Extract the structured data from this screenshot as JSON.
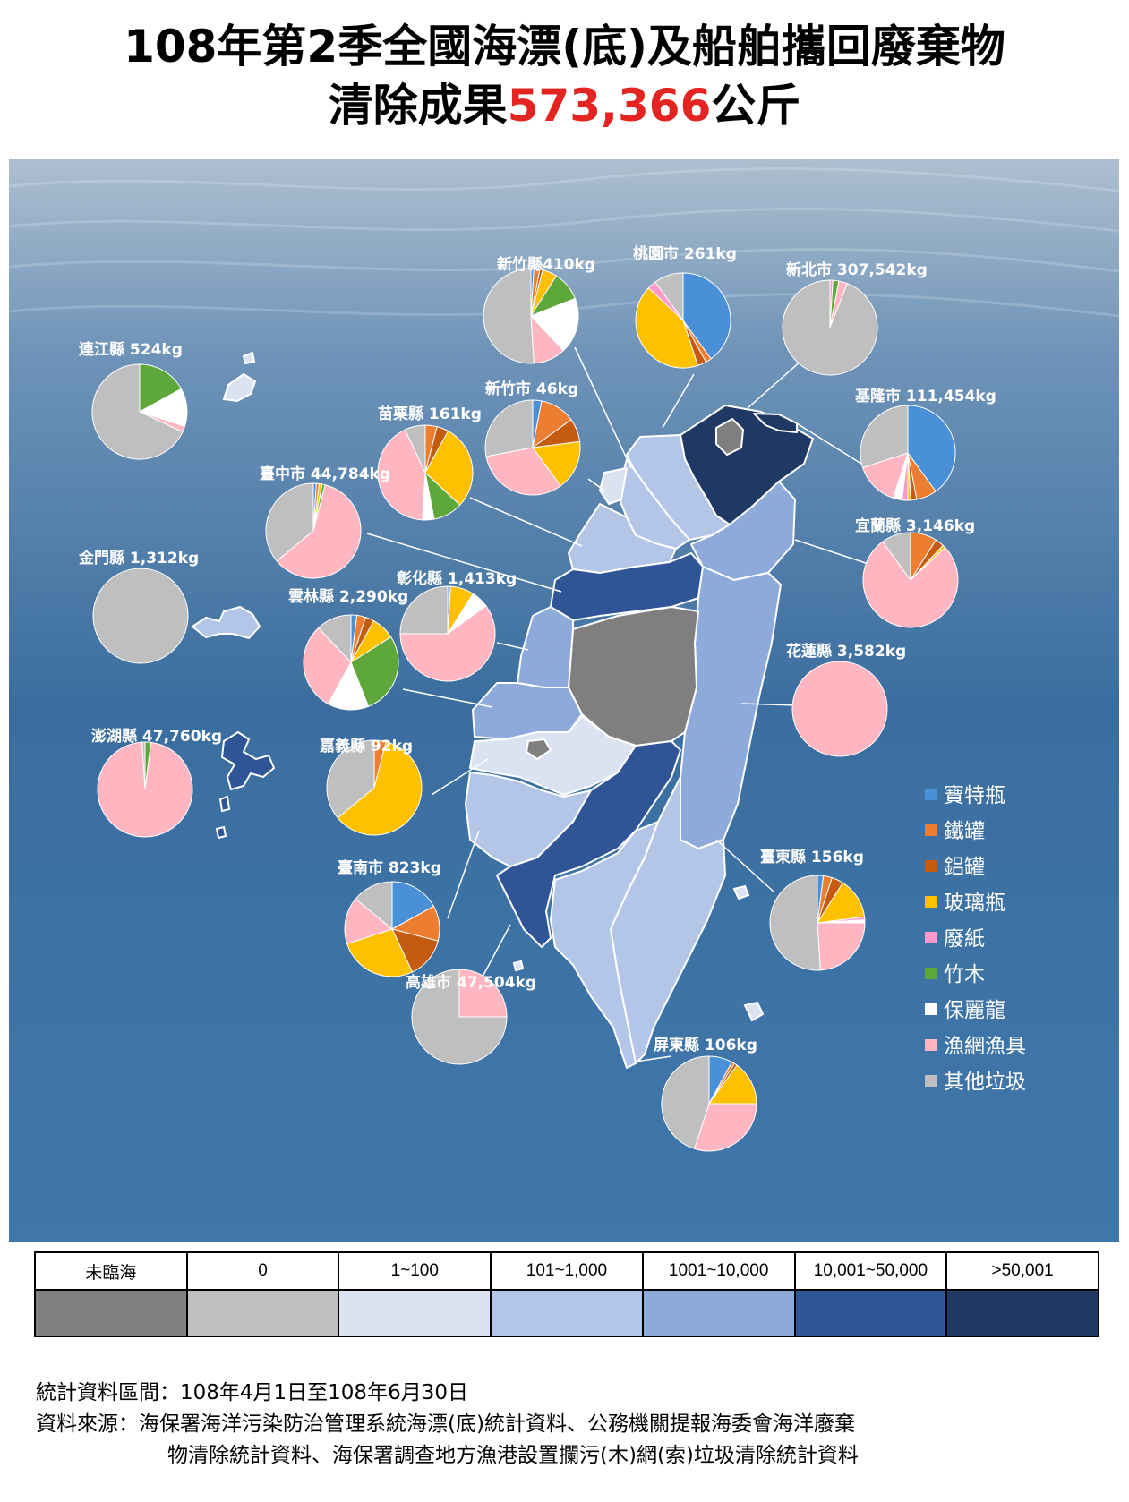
{
  "title": {
    "line1": "108年第2季全國海漂(底)及船舶攜回廢棄物",
    "line2_prefix": "清除成果",
    "line2_value": "573,366",
    "line2_unit": "公斤"
  },
  "colors": {
    "寶特瓶": "#4a90d9",
    "鐵罐": "#ed7d31",
    "鋁罐": "#c55a11",
    "玻璃瓶": "#ffc000",
    "廢紙": "#ff99cc",
    "竹木": "#5ea83b",
    "保麗龍": "#ffffff",
    "漁網漁具": "#ffb6c1",
    "其他垃圾": "#bfbfbf"
  },
  "legend": [
    "寶特瓶",
    "鐵罐",
    "鋁罐",
    "玻璃瓶",
    "廢紙",
    "竹木",
    "保麗龍",
    "漁網漁具",
    "其他垃圾"
  ],
  "chart_data": {
    "type": "pie",
    "categories": [
      "寶特瓶",
      "鐵罐",
      "鋁罐",
      "玻璃瓶",
      "廢紙",
      "竹木",
      "保麗龍",
      "漁網漁具",
      "其他垃圾"
    ],
    "pies": [
      {
        "label": "新竹縣410kg",
        "values": [
          1,
          2,
          1,
          5,
          0,
          10,
          19,
          11,
          51
        ]
      },
      {
        "label": "桃園市 261kg",
        "values": [
          40,
          2,
          3,
          42,
          3,
          0,
          0,
          0,
          10
        ]
      },
      {
        "label": "新北市 307,542kg",
        "values": [
          0,
          0,
          0,
          0,
          1,
          2,
          0,
          3,
          94
        ]
      },
      {
        "label": "連江縣 524kg",
        "values": [
          0,
          0,
          0,
          0,
          0,
          17,
          13,
          2,
          68
        ]
      },
      {
        "label": "新竹市 46kg",
        "values": [
          3,
          12,
          8,
          17,
          0,
          0,
          0,
          32,
          28
        ]
      },
      {
        "label": "苗栗縣 161kg",
        "values": [
          0,
          4,
          4,
          29,
          0,
          10,
          4,
          42,
          7
        ]
      },
      {
        "label": "基隆市 111,454kg",
        "values": [
          40,
          7,
          2,
          1,
          2,
          0,
          3,
          15,
          30
        ]
      },
      {
        "label": "臺中市 44,784kg",
        "values": [
          1,
          1,
          0,
          1,
          0,
          1,
          0,
          60,
          36
        ]
      },
      {
        "label": "宜蘭縣 3,146kg",
        "values": [
          0,
          9,
          3,
          1,
          0,
          0,
          0,
          77,
          10
        ]
      },
      {
        "label": "金門縣 1,312kg",
        "values": [
          0,
          0,
          0,
          0,
          0,
          0,
          0,
          0,
          100
        ]
      },
      {
        "label": "彰化縣 1,413kg",
        "values": [
          1,
          0,
          0,
          8,
          0,
          0,
          6,
          60,
          25
        ]
      },
      {
        "label": "雲林縣 2,290kg",
        "values": [
          2,
          3,
          3,
          8,
          0,
          28,
          14,
          30,
          12
        ]
      },
      {
        "label": "花蓮縣 3,582kg",
        "values": [
          0,
          0,
          0,
          0,
          0,
          0,
          0,
          100,
          0
        ]
      },
      {
        "label": "澎湖縣 47,760kg",
        "values": [
          0,
          0,
          0,
          0,
          0,
          2,
          0,
          97,
          1
        ]
      },
      {
        "label": "嘉義縣 92kg",
        "values": [
          0,
          4,
          0,
          60,
          0,
          0,
          0,
          0,
          36
        ]
      },
      {
        "label": "臺東縣 156kg",
        "values": [
          2,
          3,
          4,
          14,
          1,
          0,
          1,
          24,
          51
        ]
      },
      {
        "label": "臺南市 823kg",
        "values": [
          17,
          12,
          14,
          27,
          0,
          0,
          0,
          16,
          14
        ]
      },
      {
        "label": "高雄市 47,504kg",
        "values": [
          0,
          0,
          0,
          0,
          0,
          0,
          0,
          25,
          75
        ]
      },
      {
        "label": "屏東縣 106kg",
        "values": [
          8,
          1,
          1,
          15,
          0,
          0,
          0,
          30,
          45
        ]
      }
    ]
  },
  "scale": {
    "labels": [
      "未臨海",
      "0",
      "1~100",
      "101~1,000",
      "1001~10,000",
      "10,001~50,000",
      ">50,001"
    ],
    "colors": [
      "#7f7f7f",
      "#bfbfbf",
      "#dbe3f3",
      "#b4c6e7",
      "#8eaadb",
      "#2f5597",
      "#203864"
    ]
  },
  "footer": {
    "period": "統計資料區間：108年4月1日至108年6月30日",
    "source1": "資料來源：海保署海洋污染防治管理系統海漂(底)統計資料、公務機關提報海委會海洋廢棄",
    "source2": "物清除統計資料、海保署調查地方漁港設置攔污(木)網(索)垃圾清除統計資料"
  }
}
